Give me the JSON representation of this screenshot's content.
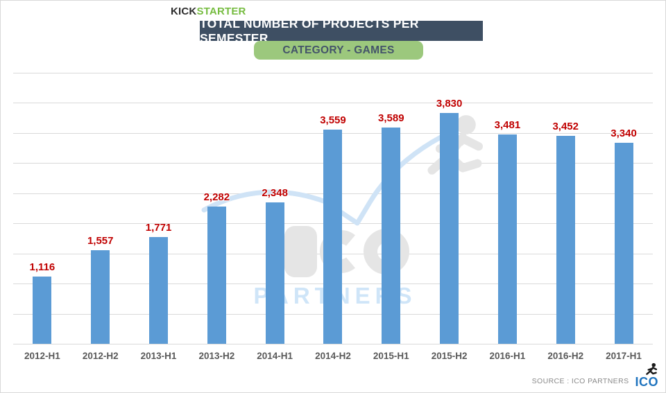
{
  "header": {
    "brand_kick": "KICK",
    "brand_starter": "STARTER",
    "title": "TOTAL NUMBER OF PROJECTS PER SEMESTER",
    "subtitle": "CATEGORY - GAMES"
  },
  "chart_data": {
    "type": "bar",
    "title": "TOTAL NUMBER OF PROJECTS PER SEMESTER",
    "subtitle": "CATEGORY - GAMES",
    "categories": [
      "2012-H1",
      "2012-H2",
      "2013-H1",
      "2013-H2",
      "2014-H1",
      "2014-H2",
      "2015-H1",
      "2015-H2",
      "2016-H1",
      "2016-H2",
      "2017-H1"
    ],
    "values": [
      1116,
      1557,
      1771,
      2282,
      2348,
      3559,
      3589,
      3830,
      3481,
      3452,
      3340
    ],
    "value_labels": [
      "1,116",
      "1,557",
      "1,771",
      "2,282",
      "2,348",
      "3,559",
      "3,589",
      "3,830",
      "3,481",
      "3,452",
      "3,340"
    ],
    "xlabel": "",
    "ylabel": "",
    "ylim": [
      0,
      4500
    ],
    "gridline_step": 500,
    "grid": "horizontal",
    "y_axis_tick_labels_visible": false,
    "legend": "none",
    "bar_color": "#5B9BD5",
    "value_label_color": "#C00000"
  },
  "watermark": {
    "name": "ICO PARTNERS",
    "partners_text": "PARTNERS"
  },
  "footer": {
    "source": "SOURCE : ICO PARTNERS",
    "logo_text": "ICO"
  },
  "theme": {
    "banner_bg": "#3E4F63",
    "banner_text": "#FFFFFF",
    "subtitle_bg": "#9CC87D",
    "subtitle_text": "#44546A",
    "kick_color": "#2D2D2D",
    "starter_color": "#76BC40",
    "bar_color": "#5B9BD5",
    "value_color": "#C00000",
    "axis_label_color": "#595959",
    "gridline_color": "#D9D9D9",
    "source_color": "#8A8A8A",
    "ico_blue": "#1E73BE",
    "runner_black": "#1A1A1A",
    "watermark_gray": "#E5E5E5",
    "watermark_blue": "#CFE3F6",
    "watermark_partners_blue": "#CFE5F8"
  }
}
